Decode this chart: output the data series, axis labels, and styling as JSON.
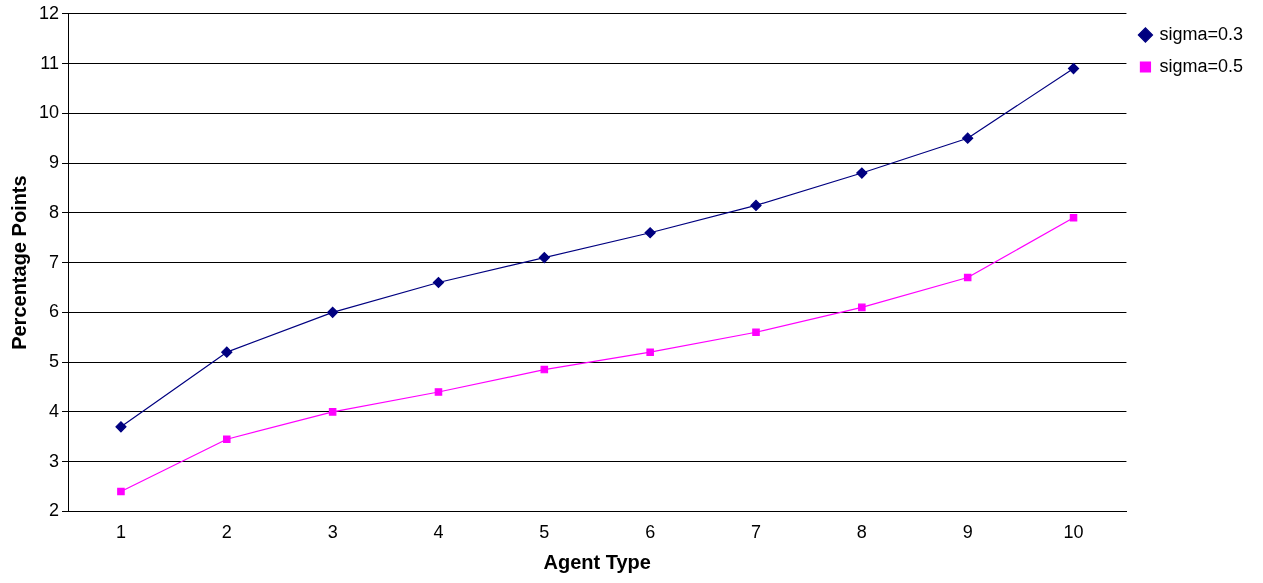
{
  "chart_data": {
    "type": "line",
    "xlabel": "Agent Type",
    "ylabel": "Percentage Points",
    "categories": [
      "1",
      "2",
      "3",
      "4",
      "5",
      "6",
      "7",
      "8",
      "9",
      "10"
    ],
    "series": [
      {
        "name": "sigma=0.3",
        "color": "#000080",
        "marker": "diamond",
        "values": [
          3.7,
          5.2,
          6.0,
          6.6,
          7.1,
          7.6,
          8.15,
          8.8,
          9.5,
          10.9
        ]
      },
      {
        "name": "sigma=0.5",
        "color": "#ff00ff",
        "marker": "square",
        "values": [
          2.4,
          3.45,
          4.0,
          4.4,
          4.85,
          5.2,
          5.6,
          6.1,
          6.7,
          7.9
        ]
      }
    ],
    "ylim": [
      2,
      12
    ],
    "yticks": [
      2,
      3,
      4,
      5,
      6,
      7,
      8,
      9,
      10,
      11,
      12
    ],
    "grid": "y",
    "legend": "top right",
    "line_style": "solid"
  }
}
